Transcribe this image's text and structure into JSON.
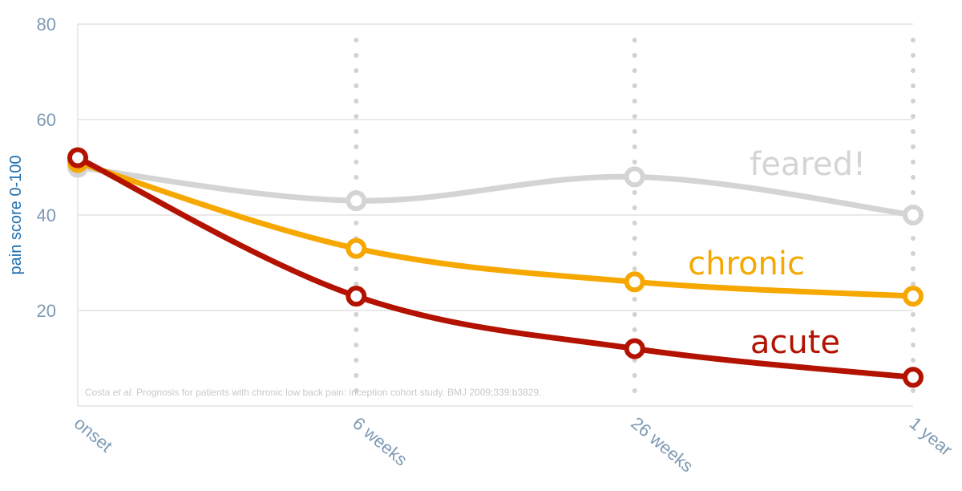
{
  "chart_data": {
    "type": "line",
    "x": [
      "onset",
      "6 weeks",
      "26 weeks",
      "1 year"
    ],
    "ylabel": "pain score 0-100",
    "ylim": [
      0,
      80
    ],
    "yticks": [
      20,
      40,
      60,
      80
    ],
    "grid": true,
    "series": [
      {
        "name": "feared!",
        "color": "#d4d4d4",
        "values": [
          50,
          43,
          48,
          40
        ]
      },
      {
        "name": "chronic",
        "color": "#f6a800",
        "values": [
          51,
          33,
          26,
          23
        ]
      },
      {
        "name": "acute",
        "color": "#b31200",
        "values": [
          52,
          23,
          12,
          6
        ]
      }
    ],
    "annotation": {
      "citation_author": "Costa ",
      "citation_etal": "et al",
      "citation_rest": ". Prognosis for patients with chronic low back pain: inception cohort study. BMJ 2009;339:b3829."
    }
  }
}
